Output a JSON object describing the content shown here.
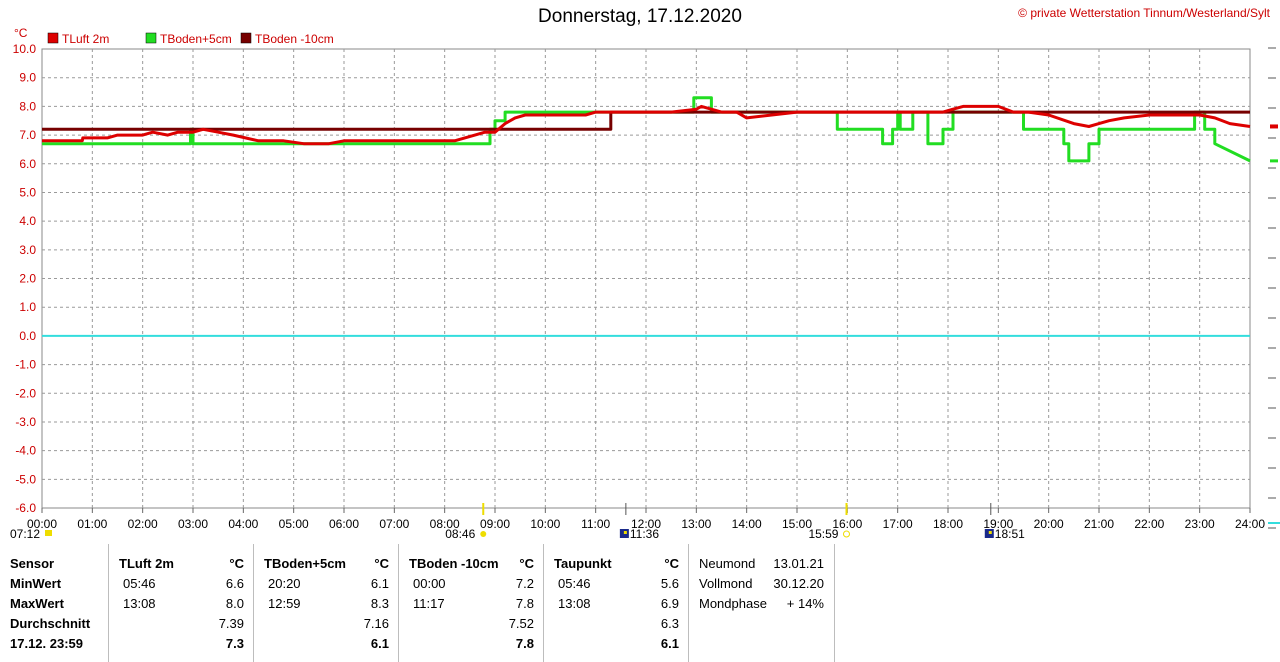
{
  "header": {
    "title": "Donnerstag, 17.12.2020",
    "copyright_symbol": "©",
    "copyright": "private Wetterstation Tinnum/Westerland/Sylt"
  },
  "chart_data": {
    "type": "line",
    "y_unit_label": "°C",
    "ylim": [
      -6.0,
      10.0
    ],
    "y_ticks": [
      "10.0",
      "9.0",
      "8.0",
      "7.0",
      "6.0",
      "5.0",
      "4.0",
      "3.0",
      "2.0",
      "1.0",
      "0.0",
      "-1.0",
      "-2.0",
      "-3.0",
      "-4.0",
      "-5.0",
      "-6.0"
    ],
    "xlim": [
      0,
      24
    ],
    "x_ticks": [
      "00:00",
      "01:00",
      "02:00",
      "03:00",
      "04:00",
      "05:00",
      "06:00",
      "07:00",
      "08:00",
      "09:00",
      "10:00",
      "11:00",
      "12:00",
      "13:00",
      "14:00",
      "15:00",
      "16:00",
      "17:00",
      "18:00",
      "19:00",
      "20:00",
      "21:00",
      "22:00",
      "23:00",
      "24:00"
    ],
    "grid": true,
    "legend_position": "top-left",
    "zero_line_color": "#33dddd",
    "series": [
      {
        "name": "TLuft 2m",
        "color": "#dd0000",
        "x": [
          0,
          0.4,
          0.8,
          0.81,
          1.3,
          1.5,
          1.8,
          2.0,
          2.2,
          2.5,
          2.7,
          3.0,
          3.2,
          3.5,
          3.8,
          4.3,
          4.8,
          5.2,
          5.7,
          6.0,
          6.4,
          7.0,
          7.5,
          8.0,
          8.2,
          8.4,
          8.6,
          8.8,
          9.0,
          9.2,
          9.4,
          9.6,
          10.0,
          10.5,
          10.8,
          11.0,
          11.3,
          11.5,
          12.0,
          12.5,
          13.0,
          13.1,
          13.3,
          13.5,
          13.8,
          14.0,
          14.5,
          15.0,
          15.5,
          16.0,
          16.5,
          17.0,
          17.3,
          17.6,
          17.9,
          18.1,
          18.3,
          18.6,
          19.0,
          19.3,
          19.6,
          20.0,
          20.5,
          20.8,
          21.0,
          21.2,
          21.5,
          22.0,
          22.5,
          23.0,
          23.3,
          23.6,
          24.0
        ],
        "y": [
          6.8,
          6.8,
          6.8,
          6.9,
          6.9,
          7.0,
          7.0,
          7.0,
          7.1,
          7.0,
          7.1,
          7.1,
          7.2,
          7.1,
          7.0,
          6.8,
          6.8,
          6.7,
          6.7,
          6.8,
          6.8,
          6.8,
          6.8,
          6.8,
          6.8,
          6.9,
          7.0,
          7.1,
          7.1,
          7.4,
          7.6,
          7.7,
          7.7,
          7.7,
          7.7,
          7.8,
          7.8,
          7.8,
          7.8,
          7.8,
          7.9,
          8.0,
          7.9,
          7.8,
          7.8,
          7.6,
          7.7,
          7.8,
          7.8,
          7.8,
          7.8,
          7.8,
          7.8,
          7.8,
          7.8,
          7.9,
          8.0,
          8.0,
          8.0,
          7.8,
          7.8,
          7.7,
          7.4,
          7.3,
          7.4,
          7.5,
          7.6,
          7.7,
          7.7,
          7.7,
          7.6,
          7.4,
          7.3
        ]
      },
      {
        "name": "TBoden+5cm",
        "color": "#22dd22",
        "x": [
          0,
          2.95,
          2.95,
          3.0,
          3.0,
          6.0,
          6.0,
          7.0,
          7.0,
          8.9,
          8.9,
          9.0,
          9.0,
          9.2,
          9.2,
          11.3,
          11.3,
          12.95,
          12.95,
          13.3,
          13.3,
          15.8,
          15.8,
          16.7,
          16.7,
          16.9,
          16.9,
          17.0,
          17.0,
          17.05,
          17.05,
          17.3,
          17.3,
          17.6,
          17.6,
          17.9,
          17.9,
          18.1,
          18.1,
          19.5,
          19.5,
          20.3,
          20.3,
          20.4,
          20.4,
          20.8,
          20.8,
          21.0,
          21.0,
          21.4,
          21.4,
          22.9,
          22.9,
          23.1,
          23.1,
          23.3,
          23.3,
          24.0
        ],
        "y": [
          6.7,
          6.7,
          7.2,
          7.2,
          6.7,
          6.7,
          6.7,
          6.7,
          6.7,
          6.7,
          7.2,
          7.2,
          7.5,
          7.5,
          7.8,
          7.8,
          7.8,
          7.8,
          8.3,
          8.3,
          7.8,
          7.8,
          7.2,
          7.2,
          6.7,
          6.7,
          7.2,
          7.2,
          7.8,
          7.8,
          7.2,
          7.2,
          7.8,
          7.8,
          6.7,
          6.7,
          7.2,
          7.2,
          7.8,
          7.8,
          7.2,
          7.2,
          6.7,
          6.7,
          6.1,
          6.1,
          6.7,
          6.7,
          7.2,
          7.2,
          7.2,
          7.2,
          7.8,
          7.8,
          7.2,
          7.2,
          6.7,
          6.1
        ]
      },
      {
        "name": "TBoden -10cm",
        "color": "#770000",
        "x": [
          0,
          9.0,
          9.0,
          11.3,
          11.3,
          24.0
        ],
        "y": [
          7.2,
          7.2,
          7.2,
          7.2,
          7.8,
          7.8
        ]
      }
    ]
  },
  "sun_moon_markers": [
    {
      "label": "07:12"
    },
    {
      "label": "08:46"
    },
    {
      "label": "11:36"
    },
    {
      "label": "15:59"
    },
    {
      "label": "18:51"
    }
  ],
  "stats": {
    "sensor": {
      "header": "Sensor",
      "rows": [
        "MinWert",
        "MaxWert",
        "Durchschnitt",
        "17.12. 23:59"
      ]
    },
    "tluft": {
      "header": "TLuft 2m",
      "unit": "°C",
      "min_time": "05:46",
      "min_val": "6.6",
      "max_time": "13:08",
      "max_val": "8.0",
      "avg": "7.39",
      "current": "7.3"
    },
    "tboden5": {
      "header": "TBoden+5cm",
      "unit": "°C",
      "min_time": "20:20",
      "min_val": "6.1",
      "max_time": "12:59",
      "max_val": "8.3",
      "avg": "7.16",
      "current": "6.1"
    },
    "tboden10": {
      "header": "TBoden -10cm",
      "unit": "°C",
      "min_time": "00:00",
      "min_val": "7.2",
      "max_time": "11:17",
      "max_val": "7.8",
      "avg": "7.52",
      "current": "7.8"
    },
    "taupunkt": {
      "header": "Taupunkt",
      "unit": "°C",
      "min_time": "05:46",
      "min_val": "5.6",
      "max_time": "13:08",
      "max_val": "6.9",
      "avg": "6.3",
      "current": "6.1"
    },
    "moon": {
      "neumond_label": "Neumond",
      "neumond": "13.01.21",
      "vollmond_label": "Vollmond",
      "vollmond": "30.12.20",
      "phase_label": "Mondphase",
      "phase": "+ 14%"
    }
  }
}
